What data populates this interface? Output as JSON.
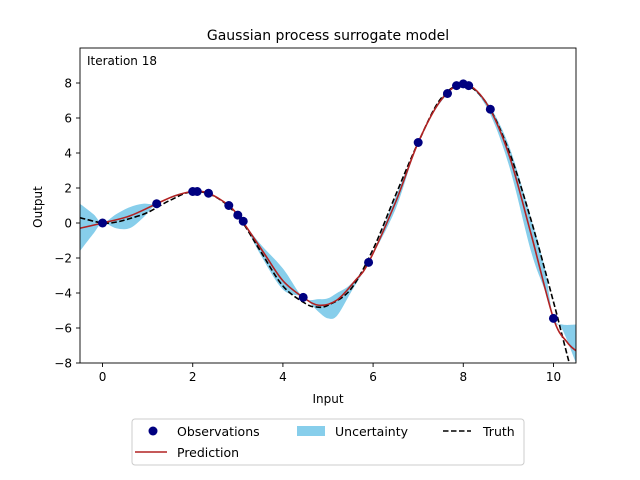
{
  "chart_data": {
    "type": "line",
    "title": "Gaussian process surrogate model",
    "annotation": "Iteration 18",
    "xlabel": "Input",
    "ylabel": "Output",
    "xlim": [
      -0.5,
      10.5
    ],
    "ylim": [
      -8,
      10
    ],
    "x_ticks": [
      0,
      2,
      4,
      6,
      8,
      10
    ],
    "y_ticks": [
      -8,
      -6,
      -4,
      -2,
      0,
      2,
      4,
      6,
      8
    ],
    "grid": false,
    "legend_position": "below",
    "colors": {
      "observations": "#000080",
      "prediction": "#b22222",
      "uncertainty": "#87ceeb",
      "truth": "#000000"
    },
    "legend": {
      "observations": "Observations",
      "prediction": "Prediction",
      "uncertainty": "Uncertainty",
      "truth": "Truth"
    },
    "observations": [
      {
        "x": 0.0,
        "y": 0.0
      },
      {
        "x": 1.2,
        "y": 1.1
      },
      {
        "x": 2.0,
        "y": 1.8
      },
      {
        "x": 2.1,
        "y": 1.8
      },
      {
        "x": 2.35,
        "y": 1.7
      },
      {
        "x": 2.8,
        "y": 1.0
      },
      {
        "x": 3.0,
        "y": 0.45
      },
      {
        "x": 3.12,
        "y": 0.1
      },
      {
        "x": 4.45,
        "y": -4.25
      },
      {
        "x": 5.9,
        "y": -2.25
      },
      {
        "x": 7.0,
        "y": 4.6
      },
      {
        "x": 7.65,
        "y": 7.4
      },
      {
        "x": 7.85,
        "y": 7.85
      },
      {
        "x": 8.0,
        "y": 7.95
      },
      {
        "x": 8.12,
        "y": 7.85
      },
      {
        "x": 8.6,
        "y": 6.5
      },
      {
        "x": 10.0,
        "y": -5.45
      }
    ],
    "truth": {
      "x": [
        -0.5,
        0.0,
        0.3,
        0.6,
        1.0,
        1.5,
        2.0,
        2.5,
        3.0,
        3.5,
        4.0,
        4.5,
        4.75,
        5.0,
        5.5,
        6.0,
        6.5,
        7.0,
        7.5,
        8.0,
        8.5,
        9.0,
        9.5,
        10.0,
        10.2,
        10.35
      ],
      "y": [
        0.3,
        0.0,
        0.05,
        0.25,
        0.6,
        1.3,
        1.8,
        1.5,
        0.4,
        -1.6,
        -3.6,
        -4.6,
        -4.8,
        -4.7,
        -3.8,
        -1.5,
        1.6,
        4.6,
        7.1,
        7.9,
        6.9,
        4.2,
        0.2,
        -4.5,
        -6.5,
        -8.0
      ]
    },
    "prediction": {
      "x": [
        -0.5,
        0.0,
        0.6,
        1.2,
        1.6,
        2.0,
        2.35,
        2.8,
        3.1,
        3.6,
        4.0,
        4.45,
        4.8,
        5.2,
        5.6,
        5.9,
        6.5,
        7.0,
        7.5,
        8.0,
        8.5,
        9.0,
        9.5,
        10.0,
        10.3,
        10.5
      ],
      "y": [
        -0.3,
        0.0,
        0.4,
        1.1,
        1.55,
        1.8,
        1.7,
        1.0,
        0.1,
        -1.8,
        -3.3,
        -4.25,
        -4.7,
        -4.4,
        -3.3,
        -2.25,
        1.2,
        4.6,
        7.0,
        7.95,
        6.9,
        4.0,
        -0.6,
        -5.45,
        -6.8,
        -7.3
      ]
    },
    "uncertainty": {
      "x": [
        -0.5,
        -0.2,
        0.0,
        0.3,
        0.6,
        0.9,
        1.2,
        1.6,
        2.0,
        2.35,
        2.8,
        3.1,
        3.5,
        4.0,
        4.45,
        4.8,
        5.0,
        5.2,
        5.5,
        5.9,
        6.5,
        7.0,
        7.5,
        8.0,
        8.5,
        9.0,
        9.5,
        9.8,
        10.0,
        10.2,
        10.5
      ],
      "lower": [
        -1.6,
        -0.6,
        0.0,
        -0.3,
        -0.3,
        0.3,
        1.1,
        1.5,
        1.8,
        1.7,
        1.0,
        0.1,
        -1.8,
        -3.8,
        -4.25,
        -5.1,
        -5.45,
        -5.3,
        -4.0,
        -2.25,
        0.8,
        4.6,
        6.9,
        7.9,
        6.7,
        3.4,
        -1.6,
        -3.8,
        -5.45,
        -6.1,
        -8.0
      ],
      "upper": [
        1.1,
        0.5,
        0.0,
        0.5,
        0.9,
        1.1,
        1.1,
        1.6,
        1.8,
        1.7,
        1.0,
        0.1,
        -1.2,
        -2.6,
        -4.25,
        -4.35,
        -4.3,
        -4.0,
        -3.5,
        -2.25,
        1.5,
        4.6,
        7.1,
        8.0,
        7.0,
        4.5,
        0.3,
        -2.5,
        -5.45,
        -5.8,
        -5.8
      ]
    }
  }
}
